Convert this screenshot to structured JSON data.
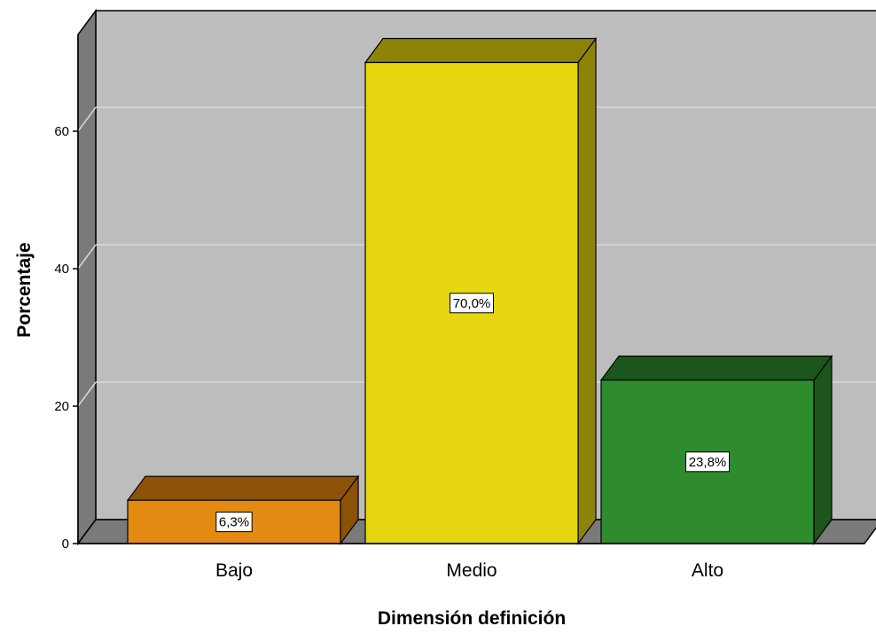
{
  "chart_data": {
    "type": "bar",
    "categories": [
      "Bajo",
      "Medio",
      "Alto"
    ],
    "values": [
      6.3,
      70.0,
      23.8
    ],
    "data_labels": [
      "6,3%",
      "70,0%",
      "23,8%"
    ],
    "xlabel": "Dimensión definición",
    "ylabel": "Porcentaje",
    "ylim": [
      0,
      78
    ],
    "yticks": [
      0,
      20,
      40,
      60
    ],
    "grid": true,
    "three_d": true,
    "colors": {
      "bars": [
        "#E38A13",
        "#E5D60F",
        "#2E8B2E"
      ],
      "bar_tops": [
        "#8C5208",
        "#8C8409",
        "#1C561C"
      ],
      "bar_sides": [
        "#8C5208",
        "#8C8409",
        "#1C561C"
      ],
      "plot_back": "#BDBDBD",
      "plot_left_wall": "#7A7A7A",
      "plot_floor": "#7A7A7A",
      "grid": "#D9D9D9"
    }
  }
}
